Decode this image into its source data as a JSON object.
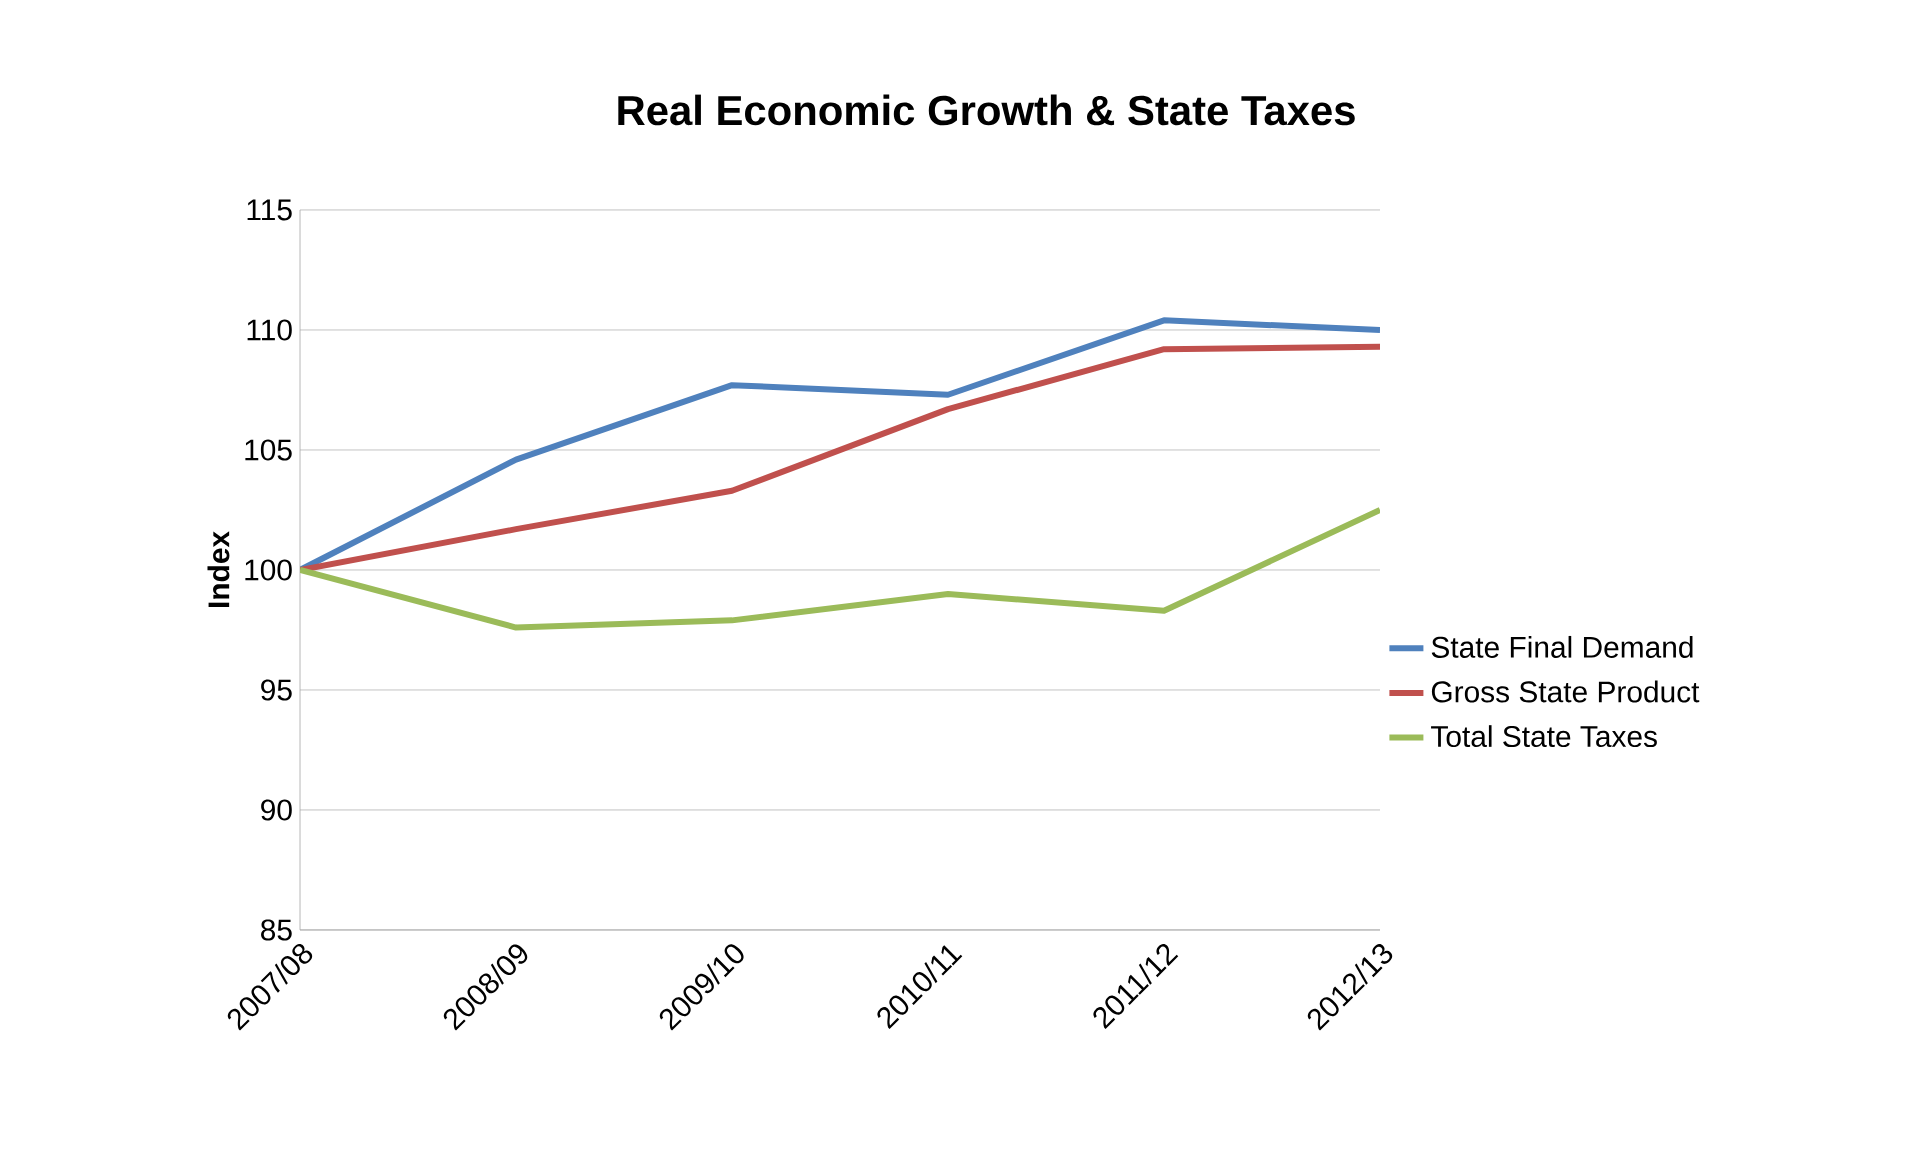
{
  "chart_data": {
    "type": "line",
    "title": "Real Economic Growth & State Taxes",
    "ylabel": "Index",
    "categories": [
      "2007/08",
      "2008/09",
      "2009/10",
      "2010/11",
      "2011/12",
      "2012/13"
    ],
    "series": [
      {
        "name": "State Final Demand",
        "color": "#4f81bd",
        "values": [
          100,
          104.6,
          107.7,
          107.3,
          110.4,
          110.0
        ]
      },
      {
        "name": "Gross State Product",
        "color": "#c0504d",
        "values": [
          100,
          101.7,
          103.3,
          106.7,
          109.2,
          109.3
        ]
      },
      {
        "name": "Total State Taxes",
        "color": "#9bbb59",
        "values": [
          100,
          97.6,
          97.9,
          99.0,
          98.3,
          102.5
        ]
      }
    ],
    "ylim": [
      85,
      115
    ],
    "yticks": [
      85,
      90,
      95,
      100,
      105,
      110,
      115
    ],
    "grid": "y",
    "legend": "right",
    "marker": "none",
    "line_style": "solid"
  }
}
